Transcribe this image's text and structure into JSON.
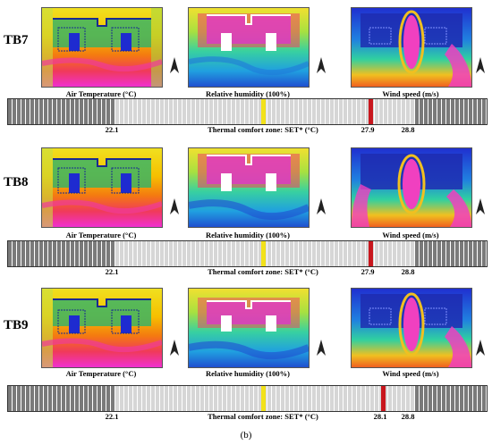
{
  "rows": [
    {
      "id": "TB7",
      "label": "TB7",
      "captions": {
        "temp": "Air Temperature (°C)",
        "rh": "Relative humidity (100%)",
        "wind": "Wind speed (m/s)"
      },
      "scale": {
        "left": "22.1",
        "marker": "27.9",
        "right": "28.8",
        "title": "Thermal comfort zone: SET* (°C)"
      }
    },
    {
      "id": "TB8",
      "label": "TB8",
      "captions": {
        "temp": "Air Temperature (°C)",
        "rh": "Relative humidity (100%)",
        "wind": "Wind speed (m/s)"
      },
      "scale": {
        "left": "22.1",
        "marker": "27.9",
        "right": "28.8",
        "title": "Thermal comfort zone: SET* (°C)"
      }
    },
    {
      "id": "TB9",
      "label": "TB9",
      "captions": {
        "temp": "Air Temperature (°C)",
        "rh": "Relative humidity (100%)",
        "wind": "Wind speed (m/s)"
      },
      "scale": {
        "left": "22.1",
        "marker": "28.1",
        "right": "28.8",
        "title": "Thermal comfort zone: SET* (°C)"
      }
    }
  ],
  "subfigure_label": "(b)",
  "colors": {
    "dark_segment": "#7a7a7a",
    "light_segment": "#d6d6d6",
    "comfort_marker": "#f2e21a",
    "set_marker": "#c8161d"
  }
}
